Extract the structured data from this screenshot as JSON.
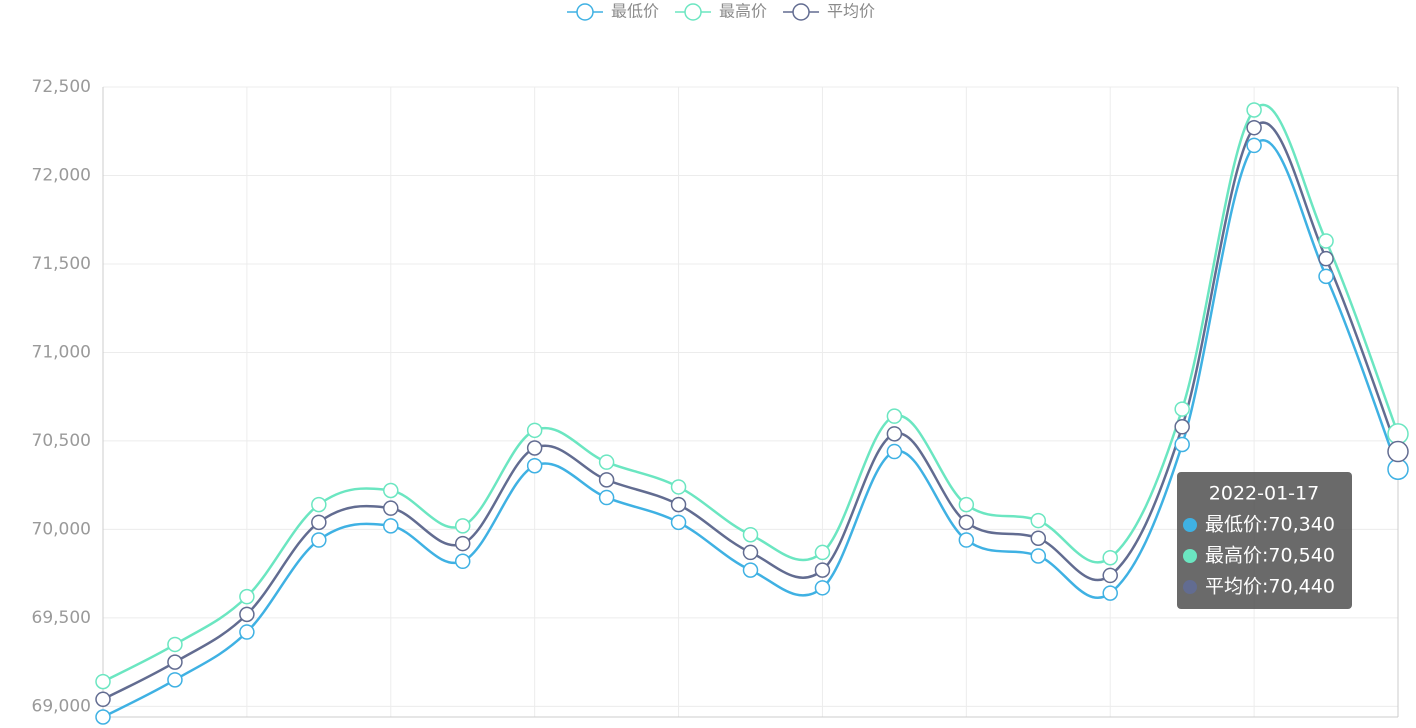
{
  "chart_data": {
    "type": "line",
    "categories": [
      null,
      null,
      null,
      null,
      null,
      null,
      null,
      null,
      null,
      null,
      null,
      null,
      null,
      null,
      null,
      null,
      null,
      null,
      "2022-01-17"
    ],
    "series": [
      {
        "name": "最低价",
        "color": "#3fb1e3",
        "values": [
          68940,
          69150,
          69420,
          69940,
          70020,
          69820,
          70360,
          70180,
          70040,
          69770,
          69670,
          70440,
          69940,
          69850,
          69640,
          70480,
          72170,
          71430,
          70340
        ],
        "value_labels": [
          null,
          null,
          null,
          null,
          null,
          null,
          null,
          null,
          null,
          null,
          null,
          null,
          null,
          null,
          null,
          null,
          null,
          null,
          "70,340"
        ]
      },
      {
        "name": "最高价",
        "color": "#6be6c1",
        "values": [
          69140,
          69350,
          69620,
          70140,
          70220,
          70020,
          70560,
          70380,
          70240,
          69970,
          69870,
          70640,
          70140,
          70050,
          69840,
          70680,
          72370,
          71630,
          70540
        ],
        "value_labels": [
          null,
          null,
          null,
          null,
          null,
          null,
          null,
          null,
          null,
          null,
          null,
          null,
          null,
          null,
          null,
          null,
          null,
          null,
          "70,540"
        ]
      },
      {
        "name": "平均价",
        "color": "#626c91",
        "values": [
          69040,
          69250,
          69520,
          70040,
          70120,
          69920,
          70460,
          70280,
          70140,
          69870,
          69770,
          70540,
          70040,
          69950,
          69740,
          70580,
          72270,
          71530,
          70440
        ],
        "value_labels": [
          null,
          null,
          null,
          null,
          null,
          null,
          null,
          null,
          null,
          null,
          null,
          null,
          null,
          null,
          null,
          null,
          null,
          null,
          "70,440"
        ]
      }
    ],
    "ylim": [
      68940,
      72500
    ],
    "yticks": [
      {
        "value": 69000,
        "label": "69,000"
      },
      {
        "value": 69500,
        "label": "69,500"
      },
      {
        "value": 70000,
        "label": "70,000"
      },
      {
        "value": 70500,
        "label": "70,500"
      },
      {
        "value": 71000,
        "label": "71,000"
      },
      {
        "value": 71500,
        "label": "71,500"
      },
      {
        "value": 72000,
        "label": "72,000"
      },
      {
        "value": 72500,
        "label": "72,500"
      }
    ],
    "grid": true,
    "smooth": true,
    "legend": "top"
  }
}
